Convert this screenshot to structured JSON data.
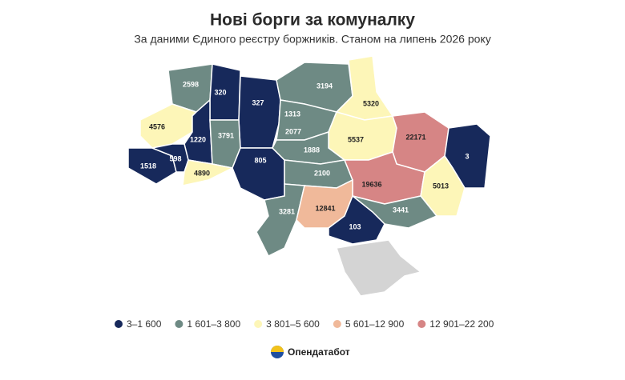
{
  "title": "Нові борги за комуналку",
  "subtitle": "За даними Єдиного реєстру боржників. Станом на липень 2026 року",
  "regions": [
    {
      "value": 2598,
      "color": "#6e8a84"
    },
    {
      "value": 320,
      "color": "#17295b"
    },
    {
      "value": 327,
      "color": "#17295b"
    },
    {
      "value": 1313,
      "color": "#17295b"
    },
    {
      "value": 3194,
      "color": "#6e8a84"
    },
    {
      "value": 5320,
      "color": "#fdf6b8"
    },
    {
      "value": 4576,
      "color": "#fdf6b8"
    },
    {
      "value": 1220,
      "color": "#17295b"
    },
    {
      "value": 3791,
      "color": "#6e8a84"
    },
    {
      "value": 2077,
      "color": "#6e8a84"
    },
    {
      "value": 5537,
      "color": "#fdf6b8"
    },
    {
      "value": 22171,
      "color": "#d68585"
    },
    {
      "value": 3,
      "color": "#17295b"
    },
    {
      "value": 1518,
      "color": "#17295b"
    },
    {
      "value": 598,
      "color": "#17295b"
    },
    {
      "value": 4890,
      "color": "#fdf6b8"
    },
    {
      "value": 805,
      "color": "#17295b"
    },
    {
      "value": 1888,
      "color": "#6e8a84"
    },
    {
      "value": 2100,
      "color": "#6e8a84"
    },
    {
      "value": 19636,
      "color": "#d68585"
    },
    {
      "value": 5013,
      "color": "#fdf6b8"
    },
    {
      "value": 3281,
      "color": "#6e8a84"
    },
    {
      "value": 12841,
      "color": "#f0b99a"
    },
    {
      "value": 3441,
      "color": "#6e8a84"
    },
    {
      "value": 103,
      "color": "#17295b"
    }
  ],
  "legend": [
    {
      "label": "3–1 600",
      "color": "#17295b"
    },
    {
      "label": "1 601–3 800",
      "color": "#6e8a84"
    },
    {
      "label": "3 801–5 600",
      "color": "#fdf6b8"
    },
    {
      "label": "5 601–12 900",
      "color": "#f0b99a"
    },
    {
      "label": "12 901–22 200",
      "color": "#d68585"
    }
  ],
  "brand": "Опендатабот"
}
